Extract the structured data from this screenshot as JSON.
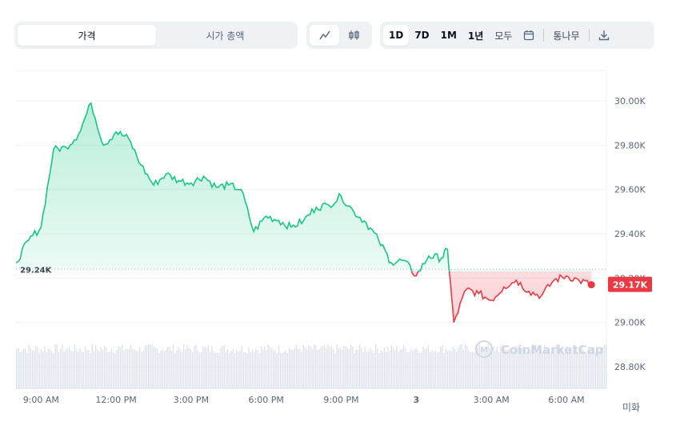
{
  "tabs": {
    "price_label": "가격",
    "marketcap_label": "시가 총액",
    "range": [
      {
        "label": "1D",
        "active": true
      },
      {
        "label": "7D",
        "active": false
      },
      {
        "label": "1M",
        "active": false
      },
      {
        "label": "1년",
        "active": false
      },
      {
        "label": "모두",
        "active": false
      }
    ],
    "log_label": "통나무"
  },
  "icons": [
    "line-chart-icon",
    "candlestick-icon",
    "calendar-icon",
    "download-icon"
  ],
  "footer_label": "미화",
  "watermark": "CoinMarketCap",
  "colors": {
    "up": "#16c784",
    "down": "#ea3943",
    "grid": "#eff2f5",
    "volume": "#cfd6e4"
  },
  "chart_data": {
    "type": "line",
    "x_tick_labels": [
      "9:00 AM",
      "12:00 PM",
      "3:00 PM",
      "6:00 PM",
      "9:00 PM",
      "3",
      "3:00 AM",
      "6:00 AM"
    ],
    "y_tick_labels": [
      "30.00K",
      "29.80K",
      "29.60K",
      "29.40K",
      "29.20K",
      "29.00K",
      "28.80K"
    ],
    "ylim": [
      28.8,
      30.0
    ],
    "baseline": {
      "value": 29.24,
      "label": "29.24K"
    },
    "current": {
      "value": 29.17,
      "label": "29.17K"
    },
    "x_hours": [
      8.0,
      8.5,
      9.0,
      9.5,
      10.0,
      10.5,
      11.0,
      11.5,
      12.0,
      12.5,
      13.0,
      13.5,
      14.0,
      14.5,
      15.0,
      15.5,
      16.0,
      16.5,
      17.0,
      17.5,
      18.0,
      18.5,
      19.0,
      19.5,
      20.0,
      20.5,
      21.0,
      21.5,
      22.0,
      22.5,
      23.0,
      23.5,
      24.0,
      24.5,
      25.0,
      25.25,
      25.5,
      26.0,
      26.5,
      27.0,
      27.5,
      28.0,
      28.5,
      29.0,
      29.5,
      30.0,
      30.5,
      31.0
    ],
    "values": [
      29.27,
      29.37,
      29.43,
      29.78,
      29.79,
      29.85,
      29.99,
      29.8,
      29.86,
      29.83,
      29.71,
      29.62,
      29.67,
      29.64,
      29.63,
      29.66,
      29.61,
      29.62,
      29.6,
      29.41,
      29.48,
      29.46,
      29.43,
      29.46,
      29.52,
      29.53,
      29.57,
      29.5,
      29.45,
      29.37,
      29.27,
      29.28,
      29.21,
      29.3,
      29.29,
      29.33,
      29.0,
      29.15,
      29.13,
      29.1,
      29.16,
      29.19,
      29.14,
      29.12,
      29.19,
      29.21,
      29.19,
      29.17
    ],
    "grid": true,
    "volume_shown": true
  }
}
